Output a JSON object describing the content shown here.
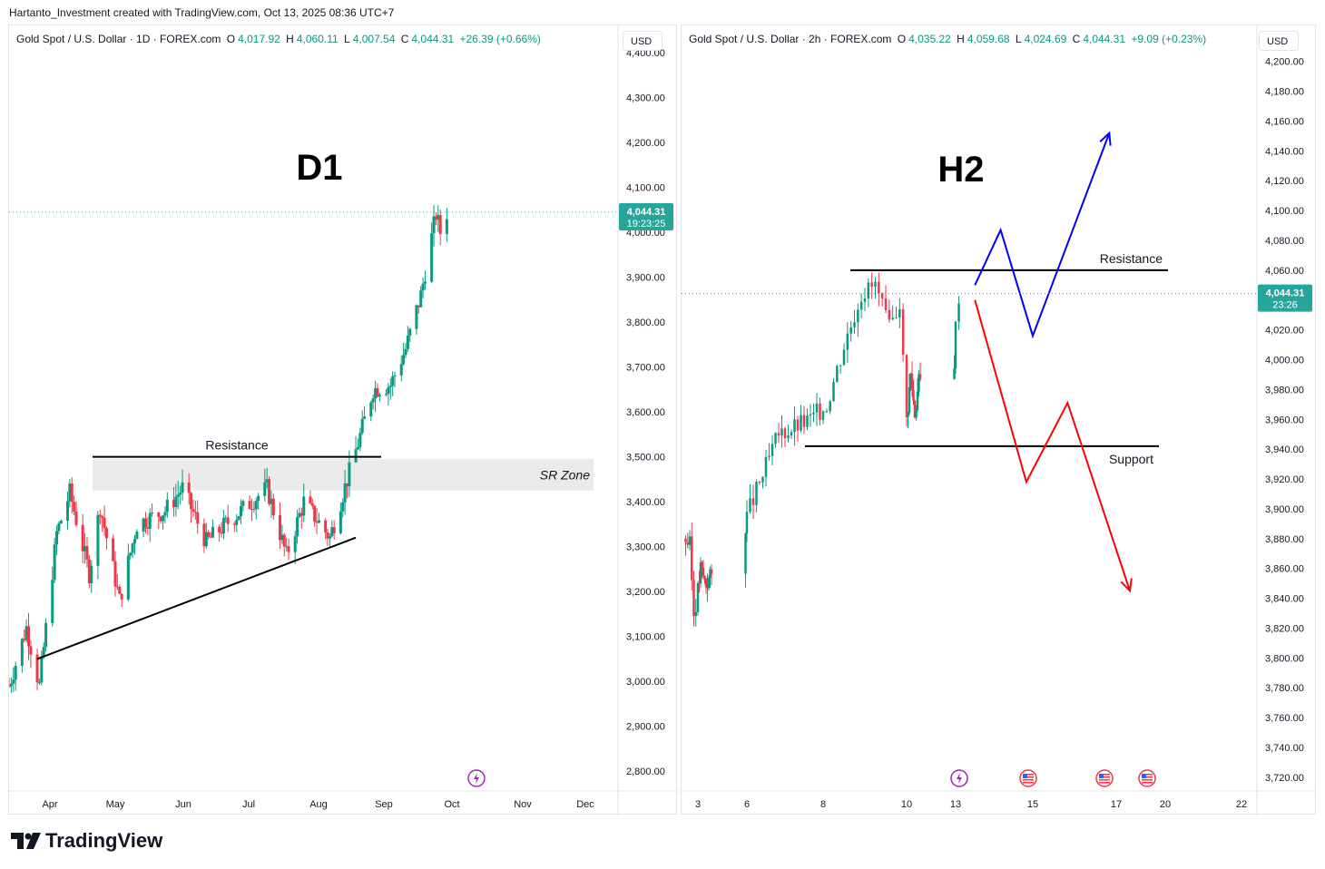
{
  "credit": "Hartanto_Investment created with TradingView.com, Oct 13, 2025 08:36 UTC+7",
  "brand": "TradingView",
  "colors": {
    "up": "#089981",
    "down": "#f23645",
    "bull_arrow": "#0000ff",
    "bear_arrow": "#ff0000",
    "price_label_bg": "#26a69a"
  },
  "charts": {
    "d1": {
      "symbol": "Gold Spot / U.S. Dollar · 1D · FOREX.com",
      "open_label": "O",
      "open": "4,017.92",
      "high_label": "H",
      "high": "4,060.11",
      "low_label": "L",
      "low": "4,007.54",
      "close_label": "C",
      "close": "4,044.31",
      "change": "+26.39 (+0.66%)",
      "currency": "USD",
      "watermark": "D1",
      "resistance_label": "Resistance",
      "zone_label": "SR Zone",
      "last_price": "4,044.31",
      "countdown": "19:23:25",
      "y_ticks": [
        "2,800.00",
        "2,900.00",
        "3,000.00",
        "3,100.00",
        "3,200.00",
        "3,300.00",
        "3,400.00",
        "3,500.00",
        "3,600.00",
        "3,700.00",
        "3,800.00",
        "3,900.00",
        "4,000.00",
        "4,100.00",
        "4,200.00",
        "4,300.00",
        "4,400.00"
      ],
      "x_ticks": [
        "Apr",
        "May",
        "Jun",
        "Jul",
        "Aug",
        "Sep",
        "Oct",
        "Nov",
        "Dec"
      ]
    },
    "h2": {
      "symbol": "Gold Spot / U.S. Dollar · 2h · FOREX.com",
      "open_label": "O",
      "open": "4,035.22",
      "high_label": "H",
      "high": "4,059.68",
      "low_label": "L",
      "low": "4,024.69",
      "close_label": "C",
      "close": "4,044.31",
      "change": "+9.09 (+0.23%)",
      "currency": "USD",
      "watermark": "H2",
      "resistance_label": "Resistance",
      "support_label": "Support",
      "last_price": "4,044.31",
      "countdown": "23:26",
      "y_ticks": [
        "3,720.00",
        "3,740.00",
        "3,760.00",
        "3,780.00",
        "3,800.00",
        "3,820.00",
        "3,840.00",
        "3,860.00",
        "3,880.00",
        "3,900.00",
        "3,920.00",
        "3,940.00",
        "3,960.00",
        "3,980.00",
        "4,000.00",
        "4,020.00",
        "4,040.00",
        "4,060.00",
        "4,080.00",
        "4,100.00",
        "4,120.00",
        "4,140.00",
        "4,160.00",
        "4,180.00",
        "4,200.00"
      ],
      "x_ticks": [
        "3",
        "6",
        "8",
        "10",
        "13",
        "15",
        "17",
        "20",
        "22"
      ]
    }
  },
  "chart_data": [
    {
      "type": "candlestick",
      "title": "Gold Spot / U.S. Dollar · 1D · FOREX.com",
      "ylim": [
        2760,
        4420
      ],
      "x_range": [
        "2025-03-25",
        "2025-12-31"
      ],
      "resistance_level": 3500,
      "sr_zone": [
        3425,
        3495
      ],
      "trendline": [
        {
          "x": "2025-04-07",
          "y": 3050
        },
        {
          "x": "2025-09-01",
          "y": 3320
        }
      ],
      "last_price": 4044.31,
      "anchors": [
        {
          "x": "2025-03-25",
          "y": 2990
        },
        {
          "x": "2025-04-02",
          "y": 3120
        },
        {
          "x": "2025-04-08",
          "y": 2990
        },
        {
          "x": "2025-04-16",
          "y": 3330
        },
        {
          "x": "2025-04-22",
          "y": 3420
        },
        {
          "x": "2025-05-01",
          "y": 3240
        },
        {
          "x": "2025-05-06",
          "y": 3390
        },
        {
          "x": "2025-05-15",
          "y": 3180
        },
        {
          "x": "2025-05-23",
          "y": 3350
        },
        {
          "x": "2025-06-05",
          "y": 3380
        },
        {
          "x": "2025-06-13",
          "y": 3430
        },
        {
          "x": "2025-06-24",
          "y": 3310
        },
        {
          "x": "2025-07-03",
          "y": 3350
        },
        {
          "x": "2025-07-22",
          "y": 3430
        },
        {
          "x": "2025-07-31",
          "y": 3280
        },
        {
          "x": "2025-08-08",
          "y": 3400
        },
        {
          "x": "2025-08-20",
          "y": 3320
        },
        {
          "x": "2025-09-02",
          "y": 3530
        },
        {
          "x": "2025-09-09",
          "y": 3650
        },
        {
          "x": "2025-09-17",
          "y": 3660
        },
        {
          "x": "2025-09-24",
          "y": 3740
        },
        {
          "x": "2025-10-01",
          "y": 3860
        },
        {
          "x": "2025-10-08",
          "y": 4040
        },
        {
          "x": "2025-10-10",
          "y": 4000
        },
        {
          "x": "2025-10-13",
          "y": 4044
        }
      ]
    },
    {
      "type": "candlestick",
      "title": "Gold Spot / U.S. Dollar · 2h · FOREX.com",
      "ylim": [
        3712,
        4212
      ],
      "x_range": [
        "2025-10-02T12:00",
        "2025-10-23T12:00"
      ],
      "resistance_level": 4060,
      "support_level": 3942,
      "last_price": 4044.31,
      "anchors": [
        {
          "x": "2025-10-02T12:00",
          "y": 3880
        },
        {
          "x": "2025-10-02T16:00",
          "y": 3875
        },
        {
          "x": "2025-10-02T20:00",
          "y": 3830
        },
        {
          "x": "2025-10-03T04:00",
          "y": 3860
        },
        {
          "x": "2025-10-03T12:00",
          "y": 3850
        },
        {
          "x": "2025-10-05T22:00",
          "y": 3890
        },
        {
          "x": "2025-10-06T20:00",
          "y": 3950
        },
        {
          "x": "2025-10-07T16:00",
          "y": 3960
        },
        {
          "x": "2025-10-08T02:00",
          "y": 3970
        },
        {
          "x": "2025-10-08T12:00",
          "y": 4010
        },
        {
          "x": "2025-10-08T22:00",
          "y": 4045
        },
        {
          "x": "2025-10-09T06:00",
          "y": 4050
        },
        {
          "x": "2025-10-09T14:00",
          "y": 4020
        },
        {
          "x": "2025-10-09T20:00",
          "y": 4040
        },
        {
          "x": "2025-10-10T00:00",
          "y": 3960
        },
        {
          "x": "2025-10-10T06:00",
          "y": 3990
        },
        {
          "x": "2025-10-10T12:00",
          "y": 3965
        },
        {
          "x": "2025-10-10T18:00",
          "y": 3985
        },
        {
          "x": "2025-10-12T22:00",
          "y": 4000
        },
        {
          "x": "2025-10-13T02:00",
          "y": 4044
        }
      ],
      "scenarios": [
        {
          "path": [
            {
              "x": "2025-10-13T12:00",
              "y": 4050
            },
            {
              "x": "2025-10-14T04:00",
              "y": 4087
            },
            {
              "x": "2025-10-15T00:00",
              "y": 4016
            },
            {
              "x": "2025-10-16T20:00",
              "y": 4152
            }
          ]
        },
        {
          "path": [
            {
              "x": "2025-10-13T12:00",
              "y": 4040
            },
            {
              "x": "2025-10-14T20:00",
              "y": 3918
            },
            {
              "x": "2025-10-15T20:00",
              "y": 3971
            },
            {
              "x": "2025-10-17T20:00",
              "y": 3845
            }
          ]
        }
      ]
    }
  ]
}
